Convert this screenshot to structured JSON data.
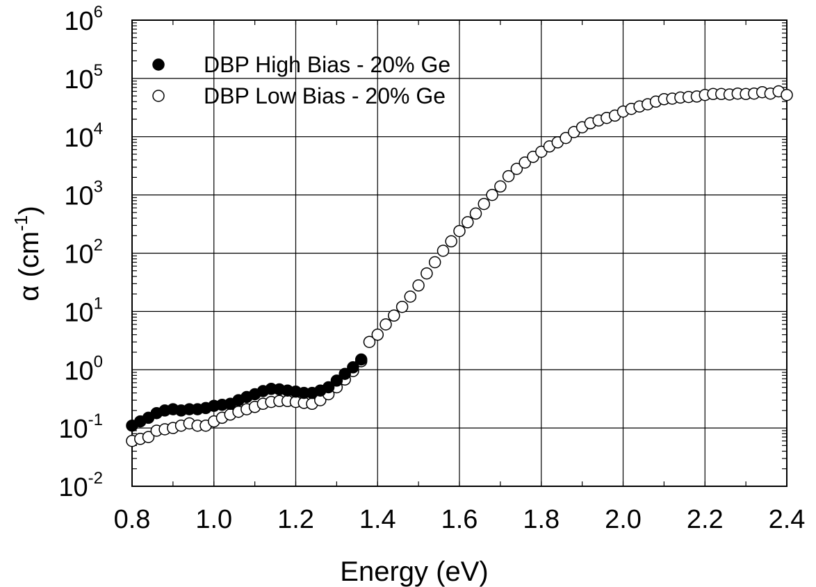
{
  "chart_data": {
    "type": "scatter",
    "title": "",
    "xlabel": "Energy (eV)",
    "ylabel": {
      "base": "α (cm",
      "sup": "-1",
      "close": ")"
    },
    "xlim": [
      0.8,
      2.4
    ],
    "ylim": [
      0.01,
      1000000
    ],
    "yscale": "log",
    "grid": true,
    "legend_position": "top-left",
    "x_ticks": [
      "0.8",
      "1.0",
      "1.2",
      "1.4",
      "1.6",
      "1.8",
      "2.0",
      "2.2",
      "2.4"
    ],
    "y_ticks": [
      {
        "base": "10",
        "exp": "-2"
      },
      {
        "base": "10",
        "exp": "-1"
      },
      {
        "base": "10",
        "exp": "0"
      },
      {
        "base": "10",
        "exp": "1"
      },
      {
        "base": "10",
        "exp": "2"
      },
      {
        "base": "10",
        "exp": "3"
      },
      {
        "base": "10",
        "exp": "4"
      },
      {
        "base": "10",
        "exp": "5"
      },
      {
        "base": "10",
        "exp": "6"
      }
    ],
    "series": [
      {
        "name": "DBP High Bias - 20% Ge",
        "marker": "filled-circle",
        "x": [
          0.8,
          0.82,
          0.84,
          0.86,
          0.88,
          0.9,
          0.92,
          0.94,
          0.96,
          0.98,
          1.0,
          1.02,
          1.04,
          1.06,
          1.08,
          1.1,
          1.12,
          1.14,
          1.16,
          1.18,
          1.2,
          1.22,
          1.24,
          1.26,
          1.28,
          1.3,
          1.32,
          1.34,
          1.36
        ],
        "y": [
          0.11,
          0.13,
          0.15,
          0.18,
          0.2,
          0.21,
          0.2,
          0.21,
          0.21,
          0.22,
          0.24,
          0.25,
          0.26,
          0.3,
          0.34,
          0.38,
          0.43,
          0.47,
          0.46,
          0.44,
          0.42,
          0.4,
          0.4,
          0.44,
          0.5,
          0.65,
          0.85,
          1.1,
          1.5
        ]
      },
      {
        "name": "DBP Low Bias - 20% Ge",
        "marker": "open-circle",
        "x": [
          0.8,
          0.82,
          0.84,
          0.86,
          0.88,
          0.9,
          0.92,
          0.94,
          0.96,
          0.98,
          1.0,
          1.02,
          1.04,
          1.06,
          1.08,
          1.1,
          1.12,
          1.14,
          1.16,
          1.18,
          1.2,
          1.22,
          1.24,
          1.26,
          1.28,
          1.3,
          1.32,
          1.34,
          1.36,
          1.38,
          1.4,
          1.42,
          1.44,
          1.46,
          1.48,
          1.5,
          1.52,
          1.54,
          1.56,
          1.58,
          1.6,
          1.62,
          1.64,
          1.66,
          1.68,
          1.7,
          1.72,
          1.74,
          1.76,
          1.78,
          1.8,
          1.82,
          1.84,
          1.86,
          1.88,
          1.9,
          1.92,
          1.94,
          1.96,
          1.98,
          2.0,
          2.02,
          2.04,
          2.06,
          2.08,
          2.1,
          2.12,
          2.14,
          2.16,
          2.18,
          2.2,
          2.22,
          2.24,
          2.26,
          2.28,
          2.3,
          2.32,
          2.34,
          2.36,
          2.38,
          2.4
        ],
        "y": [
          0.06,
          0.065,
          0.07,
          0.09,
          0.095,
          0.1,
          0.11,
          0.12,
          0.11,
          0.11,
          0.13,
          0.15,
          0.17,
          0.19,
          0.21,
          0.23,
          0.26,
          0.28,
          0.29,
          0.29,
          0.28,
          0.27,
          0.26,
          0.3,
          0.38,
          0.5,
          0.68,
          0.95,
          1.4,
          3.0,
          4.0,
          6.0,
          8.5,
          12,
          18,
          28,
          45,
          70,
          110,
          160,
          240,
          340,
          480,
          700,
          1000,
          1400,
          2100,
          2800,
          3600,
          4500,
          5500,
          6800,
          8000,
          9500,
          12000,
          14500,
          17000,
          19000,
          21000,
          23000,
          27000,
          30000,
          33000,
          36000,
          40000,
          44000,
          45000,
          47000,
          48000,
          49000,
          52000,
          54000,
          54000,
          53000,
          55000,
          54000,
          55000,
          58000,
          55000,
          60000,
          52000
        ]
      }
    ]
  }
}
